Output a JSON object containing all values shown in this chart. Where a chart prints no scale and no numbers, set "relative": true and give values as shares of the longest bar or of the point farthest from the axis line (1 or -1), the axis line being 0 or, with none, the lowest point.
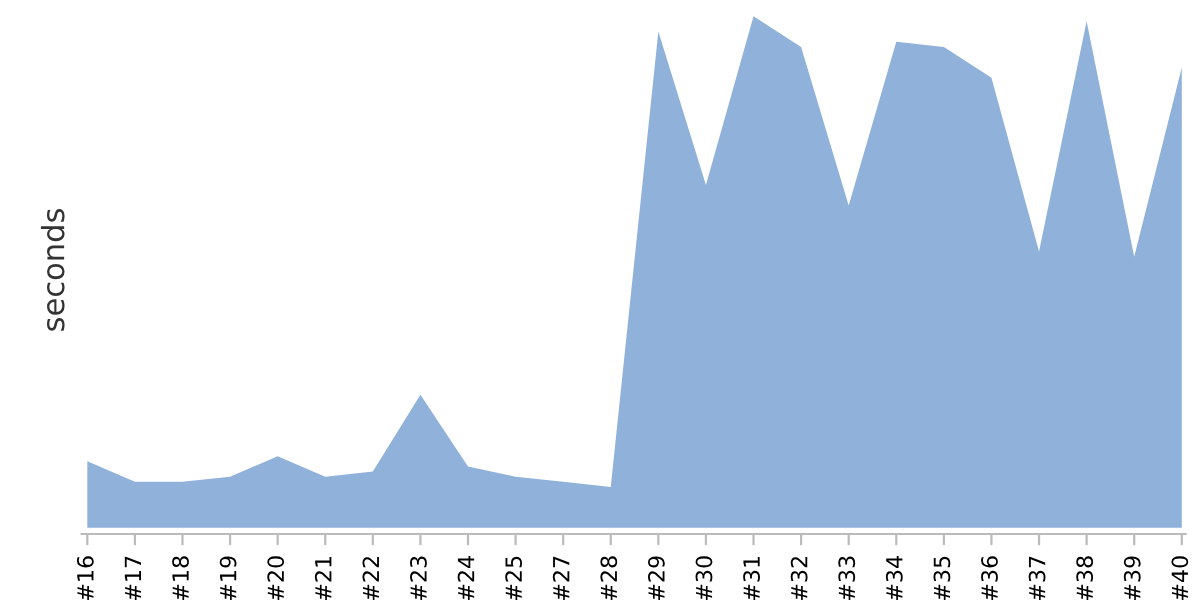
{
  "chart_data": {
    "type": "area",
    "relative": true,
    "ylabel": "seconds",
    "color": "#8fb1da",
    "grid": false,
    "legend": false,
    "categories": [
      "#16",
      "#17",
      "#18",
      "#19",
      "#20",
      "#21",
      "#22",
      "#23",
      "#24",
      "#25",
      "#27",
      "#28",
      "#29",
      "#30",
      "#31",
      "#32",
      "#33",
      "#34",
      "#35",
      "#36",
      "#37",
      "#38",
      "#39",
      "#40"
    ],
    "values": [
      0.13,
      0.09,
      0.09,
      0.1,
      0.14,
      0.1,
      0.11,
      0.26,
      0.12,
      0.1,
      0.09,
      0.08,
      0.97,
      0.67,
      1.0,
      0.94,
      0.63,
      0.95,
      0.94,
      0.88,
      0.54,
      0.99,
      0.53,
      0.9
    ]
  }
}
